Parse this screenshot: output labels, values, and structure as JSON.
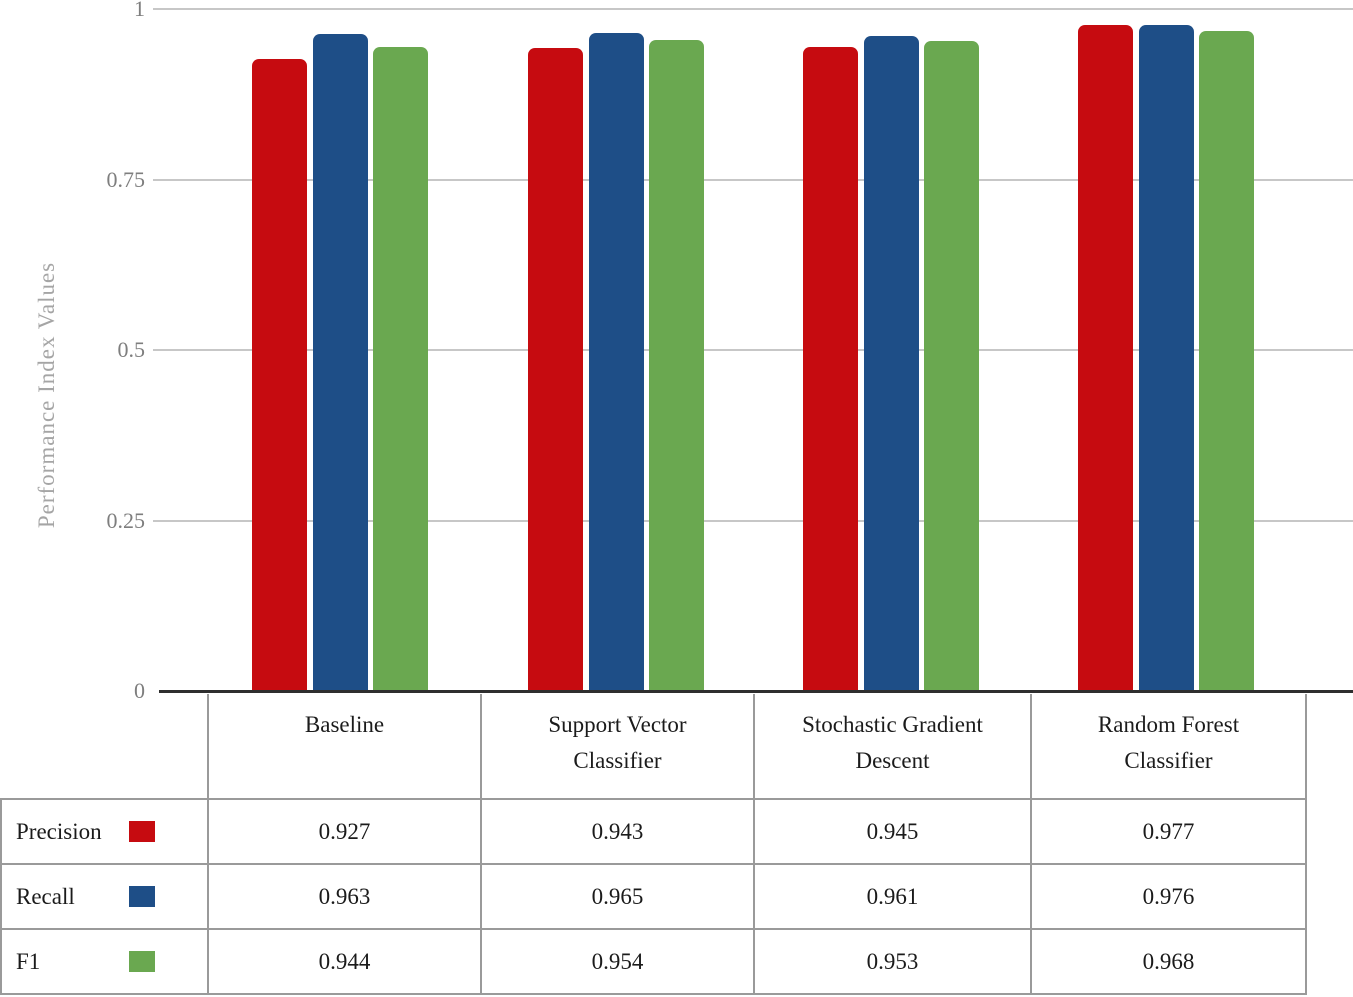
{
  "chart": {
    "y_axis_title": "Performance Index Values",
    "y_ticks": [
      "0",
      "0.25",
      "0.5",
      "0.75",
      "1"
    ]
  },
  "chart_data": {
    "type": "bar",
    "categories": [
      "Baseline",
      "Support Vector Classifier",
      "Stochastic Gradient Descent",
      "Random Forest Classifier"
    ],
    "series": [
      {
        "name": "Precision",
        "color": "#c60b10",
        "values": [
          0.927,
          0.943,
          0.945,
          0.977
        ]
      },
      {
        "name": "Recall",
        "color": "#1e4e87",
        "values": [
          0.963,
          0.965,
          0.961,
          0.976
        ]
      },
      {
        "name": "F1",
        "color": "#6aa850",
        "values": [
          0.944,
          0.954,
          0.953,
          0.968
        ]
      }
    ],
    "title": "",
    "xlabel": "",
    "ylabel": "Performance Index Values",
    "ylim": [
      0,
      1
    ],
    "y_tick_values": [
      0,
      0.25,
      0.5,
      0.75,
      1
    ],
    "grid": true,
    "legend_position": "table-rows-left"
  },
  "table": {
    "col_headers": [
      "Baseline",
      "Support Vector Classifier",
      "Stochastic Gradient Descent",
      "Random Forest Classifier"
    ],
    "rows": [
      {
        "label": "Precision",
        "swatch_color": "#c60b10",
        "values": [
          "0.927",
          "0.943",
          "0.945",
          "0.977"
        ]
      },
      {
        "label": "Recall",
        "swatch_color": "#1e4e87",
        "values": [
          "0.963",
          "0.965",
          "0.961",
          "0.976"
        ]
      },
      {
        "label": "F1",
        "swatch_color": "#6aa850",
        "values": [
          "0.944",
          "0.954",
          "0.953",
          "0.968"
        ]
      }
    ]
  },
  "colors": {
    "precision": "#c60b10",
    "recall": "#1e4e87",
    "f1": "#6aa850",
    "gridline": "#c7c7c7",
    "axis_line": "#2e2e2e",
    "table_border": "#9a9a9a",
    "tick_text": "#7e7e7e",
    "axis_title_text": "#a5a5a5"
  }
}
